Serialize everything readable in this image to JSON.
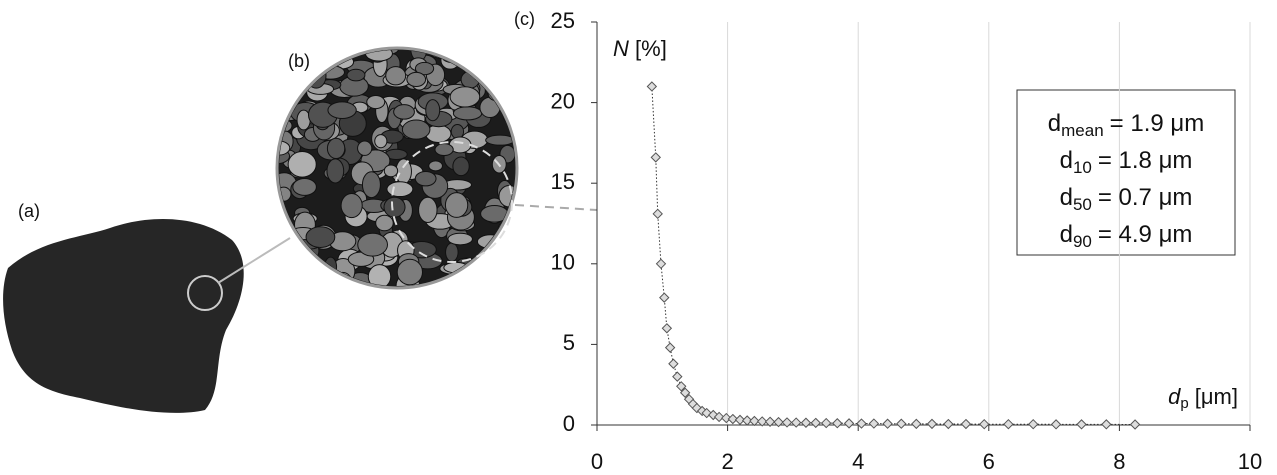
{
  "panel_labels": [
    "(a)",
    "(b)"
  ],
  "chart_data": {
    "type": "line",
    "panel_label": "(c)",
    "y_label": {
      "symbol": "N",
      "unit": "[%]"
    },
    "x_label": {
      "symbol": "d",
      "subscript": "p",
      "unit": "[μm]"
    },
    "x": [
      0.84,
      0.9,
      0.93,
      0.98,
      1.03,
      1.07,
      1.12,
      1.17,
      1.23,
      1.29,
      1.35,
      1.41,
      1.47,
      1.53,
      1.61,
      1.68,
      1.78,
      1.87,
      1.98,
      2.08,
      2.19,
      2.3,
      2.41,
      2.53,
      2.65,
      2.78,
      2.91,
      3.05,
      3.2,
      3.35,
      3.51,
      3.68,
      3.86,
      4.05,
      4.24,
      4.45,
      4.66,
      4.89,
      5.13,
      5.38,
      5.65,
      5.93,
      6.3,
      6.68,
      7.03,
      7.42,
      7.8,
      8.24
    ],
    "series": [
      {
        "color": "#555555",
        "values": [
          21.0,
          16.6,
          13.1,
          10.0,
          7.9,
          6.0,
          4.8,
          3.8,
          3.0,
          2.4,
          2.0,
          1.6,
          1.3,
          1.05,
          0.87,
          0.74,
          0.62,
          0.5,
          0.43,
          0.37,
          0.32,
          0.28,
          0.25,
          0.22,
          0.2,
          0.18,
          0.16,
          0.15,
          0.14,
          0.13,
          0.12,
          0.11,
          0.1,
          0.09,
          0.09,
          0.08,
          0.08,
          0.07,
          0.07,
          0.06,
          0.06,
          0.05,
          0.05,
          0.05,
          0.04,
          0.04,
          0.04,
          0.03
        ]
      }
    ],
    "xlim": [
      0,
      10
    ],
    "xticks": [
      0,
      2,
      4,
      6,
      8,
      10
    ],
    "ylim": [
      0,
      25
    ],
    "yticks": [
      0,
      5,
      10,
      15,
      20,
      25
    ],
    "grid": true,
    "annotation": [
      {
        "symbol": "d",
        "subscript": "mean",
        "text": "= 1.9 μm"
      },
      {
        "symbol": "d",
        "subscript": "10",
        "text": "= 1.8 μm"
      },
      {
        "symbol": "d",
        "subscript": "50",
        "text": "= 0.7 μm"
      },
      {
        "symbol": "d",
        "subscript": "90",
        "text": "= 4.9 μm"
      }
    ]
  }
}
